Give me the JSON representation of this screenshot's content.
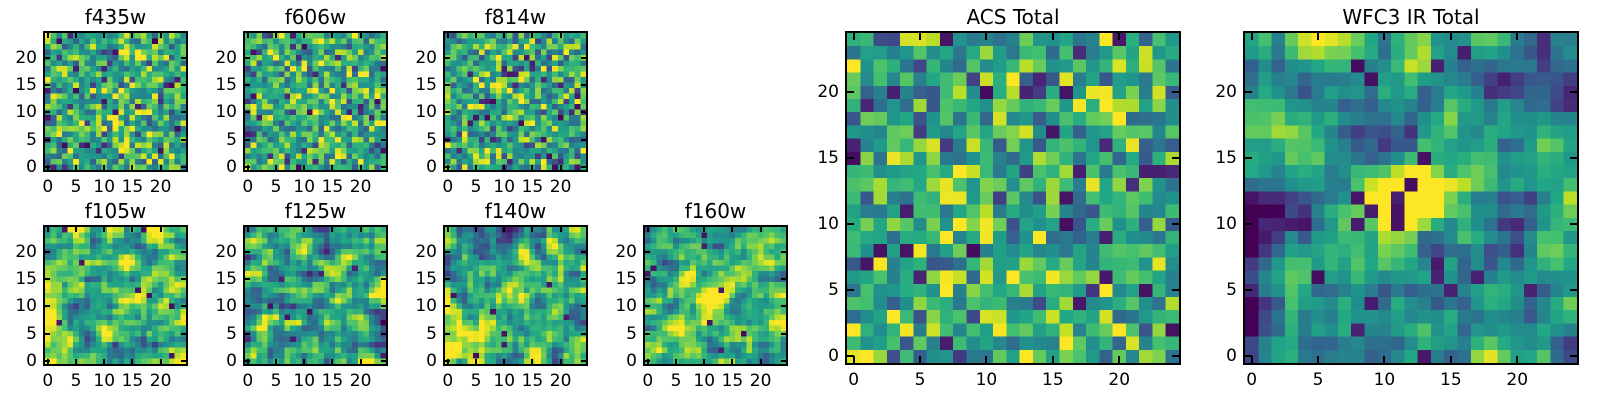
{
  "figure": {
    "background": "#ffffff",
    "text_color": "#000000",
    "axes_edge_color": "#000000",
    "colormap": {
      "name": "viridis",
      "stops": [
        "#440154",
        "#482475",
        "#414487",
        "#355f8d",
        "#2a788e",
        "#21918c",
        "#22a884",
        "#44bf70",
        "#7ad151",
        "#bddf26",
        "#fde725"
      ]
    }
  },
  "chart_data": [
    {
      "id": "f435w",
      "type": "heatmap",
      "title": "f435w",
      "size": "small",
      "grid": {
        "nx": 25,
        "ny": 25
      },
      "xlim": [
        -0.5,
        24.5
      ],
      "ylim": [
        -0.5,
        24.5
      ],
      "x_ticks": [
        0,
        5,
        10,
        15,
        20
      ],
      "y_ticks": [
        0,
        5,
        10,
        15,
        20
      ],
      "colormap": "viridis",
      "legend": "none",
      "grid_lines": false,
      "data_spec": {
        "seed": 11,
        "mu": 0.6,
        "sigma": 0.2,
        "bright_pre": 0.02,
        "dark_pre": 0.03,
        "smooth": 0,
        "stretch": 1.0,
        "dark_post": 0,
        "sources": []
      }
    },
    {
      "id": "f606w",
      "type": "heatmap",
      "title": "f606w",
      "size": "small",
      "grid": {
        "nx": 25,
        "ny": 25
      },
      "xlim": [
        -0.5,
        24.5
      ],
      "ylim": [
        -0.5,
        24.5
      ],
      "x_ticks": [
        0,
        5,
        10,
        15,
        20
      ],
      "y_ticks": [
        0,
        5,
        10,
        15,
        20
      ],
      "colormap": "viridis",
      "legend": "none",
      "grid_lines": false,
      "data_spec": {
        "seed": 23,
        "mu": 0.6,
        "sigma": 0.2,
        "bright_pre": 0.02,
        "dark_pre": 0.03,
        "smooth": 0,
        "stretch": 1.0,
        "dark_post": 0,
        "sources": []
      }
    },
    {
      "id": "f814w",
      "type": "heatmap",
      "title": "f814w",
      "size": "small",
      "grid": {
        "nx": 25,
        "ny": 25
      },
      "xlim": [
        -0.5,
        24.5
      ],
      "ylim": [
        -0.5,
        24.5
      ],
      "x_ticks": [
        0,
        5,
        10,
        15,
        20
      ],
      "y_ticks": [
        0,
        5,
        10,
        15,
        20
      ],
      "colormap": "viridis",
      "legend": "none",
      "grid_lines": false,
      "data_spec": {
        "seed": 37,
        "mu": 0.6,
        "sigma": 0.21,
        "bright_pre": 0.025,
        "dark_pre": 0.035,
        "smooth": 0,
        "stretch": 1.0,
        "dark_post": 0,
        "sources": []
      }
    },
    {
      "id": "f105w",
      "type": "heatmap",
      "title": "f105w",
      "size": "small",
      "grid": {
        "nx": 25,
        "ny": 25
      },
      "xlim": [
        -0.5,
        24.5
      ],
      "ylim": [
        -0.5,
        24.5
      ],
      "x_ticks": [
        0,
        5,
        10,
        15,
        20
      ],
      "y_ticks": [
        0,
        5,
        10,
        15,
        20
      ],
      "colormap": "viridis",
      "legend": "none",
      "grid_lines": false,
      "data_spec": {
        "seed": 51,
        "mu": 0.6,
        "sigma": 0.34,
        "bright_pre": 0.015,
        "dark_pre": 0.02,
        "smooth": 1,
        "stretch": 1.7,
        "dark_post": 0.012,
        "sources": []
      }
    },
    {
      "id": "f125w",
      "type": "heatmap",
      "title": "f125w",
      "size": "small",
      "grid": {
        "nx": 25,
        "ny": 25
      },
      "xlim": [
        -0.5,
        24.5
      ],
      "ylim": [
        -0.5,
        24.5
      ],
      "x_ticks": [
        0,
        5,
        10,
        15,
        20
      ],
      "y_ticks": [
        0,
        5,
        10,
        15,
        20
      ],
      "colormap": "viridis",
      "legend": "none",
      "grid_lines": false,
      "data_spec": {
        "seed": 67,
        "mu": 0.6,
        "sigma": 0.34,
        "bright_pre": 0.015,
        "dark_pre": 0.025,
        "smooth": 1,
        "stretch": 1.7,
        "dark_post": 0.012,
        "sources": []
      }
    },
    {
      "id": "f140w",
      "type": "heatmap",
      "title": "f140w",
      "size": "small",
      "grid": {
        "nx": 25,
        "ny": 25
      },
      "xlim": [
        -0.5,
        24.5
      ],
      "ylim": [
        -0.5,
        24.5
      ],
      "x_ticks": [
        0,
        5,
        10,
        15,
        20
      ],
      "y_ticks": [
        0,
        5,
        10,
        15,
        20
      ],
      "colormap": "viridis",
      "legend": "none",
      "grid_lines": false,
      "data_spec": {
        "seed": 83,
        "mu": 0.6,
        "sigma": 0.34,
        "bright_pre": 0.015,
        "dark_pre": 0.02,
        "smooth": 1,
        "stretch": 1.7,
        "dark_post": 0.012,
        "sources": [
          {
            "x": 4,
            "y": 4,
            "amp": 0.3,
            "sigma": 2.6
          },
          {
            "x": 11.5,
            "y": 12,
            "amp": 0.22,
            "sigma": 1.4
          }
        ]
      }
    },
    {
      "id": "f160w",
      "type": "heatmap",
      "title": "f160w",
      "size": "small",
      "grid": {
        "nx": 25,
        "ny": 25
      },
      "xlim": [
        -0.5,
        24.5
      ],
      "ylim": [
        -0.5,
        24.5
      ],
      "x_ticks": [
        0,
        5,
        10,
        15,
        20
      ],
      "y_ticks": [
        0,
        5,
        10,
        15,
        20
      ],
      "colormap": "viridis",
      "legend": "none",
      "grid_lines": false,
      "data_spec": {
        "seed": 97,
        "mu": 0.6,
        "sigma": 0.32,
        "bright_pre": 0.012,
        "dark_pre": 0.02,
        "smooth": 1,
        "stretch": 1.6,
        "dark_post": 0.012,
        "sources": [
          {
            "x": 11.5,
            "y": 12,
            "amp": 0.5,
            "sigma": 2.0
          },
          {
            "x": 6.5,
            "y": 5.5,
            "amp": 0.22,
            "sigma": 2.0
          }
        ]
      }
    },
    {
      "id": "acs_total",
      "type": "heatmap",
      "title": "ACS Total",
      "size": "large",
      "grid": {
        "nx": 25,
        "ny": 25
      },
      "xlim": [
        -0.5,
        24.5
      ],
      "ylim": [
        -0.5,
        24.5
      ],
      "x_ticks": [
        0,
        5,
        10,
        15,
        20
      ],
      "y_ticks": [
        0,
        5,
        10,
        15,
        20
      ],
      "colormap": "viridis",
      "legend": "none",
      "grid_lines": false,
      "data_spec": {
        "seed": 131,
        "mu": 0.6,
        "sigma": 0.2,
        "bright_pre": 0.025,
        "dark_pre": 0.035,
        "smooth": 0,
        "stretch": 1.0,
        "dark_post": 0.008,
        "sources": []
      }
    },
    {
      "id": "wfc3_ir_total",
      "type": "heatmap",
      "title": "WFC3 IR Total",
      "size": "large",
      "grid": {
        "nx": 25,
        "ny": 25
      },
      "xlim": [
        -0.5,
        24.5
      ],
      "ylim": [
        -0.5,
        24.5
      ],
      "x_ticks": [
        0,
        5,
        10,
        15,
        20
      ],
      "y_ticks": [
        0,
        5,
        10,
        15,
        20
      ],
      "colormap": "viridis",
      "legend": "none",
      "grid_lines": false,
      "data_spec": {
        "seed": 149,
        "mu": 0.48,
        "sigma": 0.3,
        "bright_pre": 0.01,
        "dark_pre": 0.03,
        "smooth": 1,
        "stretch": 1.6,
        "dark_post": 0.035,
        "sources": [
          {
            "x": 11.5,
            "y": 12.3,
            "amp": 0.75,
            "sigma": 1.9
          },
          {
            "x": 0,
            "y": 11.5,
            "amp": -0.55,
            "sigma": 1.3
          },
          {
            "x": 21.5,
            "y": 22.5,
            "amp": -0.5,
            "sigma": 1.1
          }
        ]
      }
    }
  ]
}
